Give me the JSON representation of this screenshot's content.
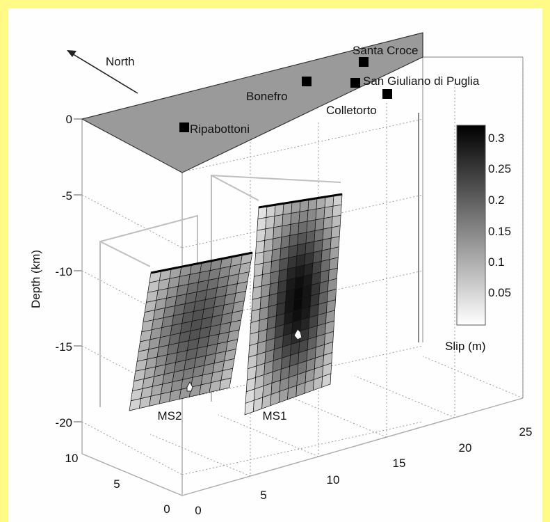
{
  "chart_data": {
    "type": "3d-fault-slip",
    "ylabel": "Depth (km)",
    "north_label": "North",
    "colorbar": {
      "label": "Slip (m)",
      "ticks": [
        "0.3",
        "0.25",
        "0.2",
        "0.15",
        "0.1",
        "0.05"
      ],
      "range": [
        0,
        0.32
      ],
      "colormap": "gray-reversed"
    },
    "z_ticks": [
      "0",
      "-5",
      "-10",
      "-15",
      "-20"
    ],
    "z_range": [
      -21,
      0
    ],
    "x_ticks": [
      "0",
      "5",
      "10",
      "15",
      "20",
      "25"
    ],
    "x_range": [
      0,
      25
    ],
    "y_ticks": [
      "0",
      "5",
      "10"
    ],
    "y_range": [
      0,
      10
    ],
    "towns": [
      {
        "name": "Santa Croce"
      },
      {
        "name": "San Giuliano di Puglia"
      },
      {
        "name": "Bonefro"
      },
      {
        "name": "Colletorto"
      },
      {
        "name": "Ripabottoni"
      }
    ],
    "faults": [
      {
        "label": "MS2",
        "grid": [
          10,
          14
        ],
        "peak_slip": 0.22
      },
      {
        "label": "MS1",
        "grid": [
          10,
          18
        ],
        "peak_slip": 0.31
      }
    ]
  }
}
